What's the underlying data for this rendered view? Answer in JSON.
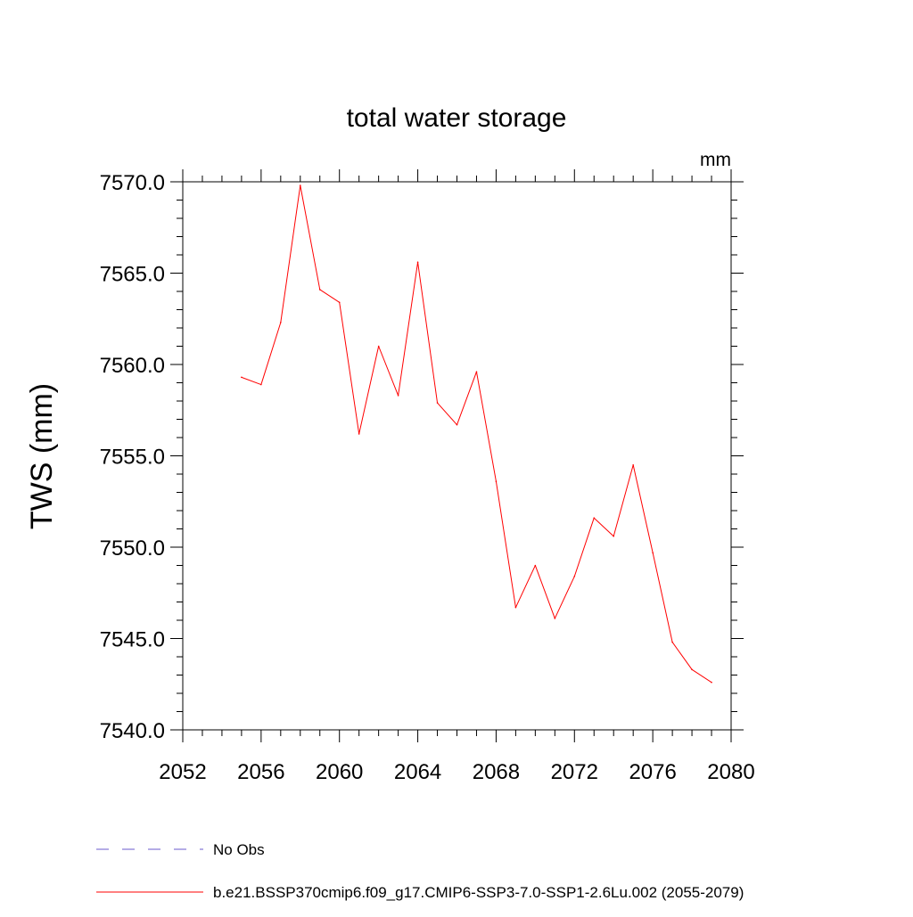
{
  "chart_data": {
    "type": "line",
    "title": "total water storage",
    "units_label": "mm",
    "ylabel": "TWS  (mm)",
    "xlabel": "",
    "xlim": [
      2052,
      2080
    ],
    "ylim": [
      7540,
      7570
    ],
    "x_ticks": [
      2052,
      2056,
      2060,
      2064,
      2068,
      2072,
      2076,
      2080
    ],
    "x_tick_labels": [
      "2052",
      "2056",
      "2060",
      "2064",
      "2068",
      "2072",
      "2076",
      "2080"
    ],
    "y_ticks": [
      7540,
      7545,
      7550,
      7555,
      7560,
      7565,
      7570
    ],
    "y_tick_labels": [
      "7540.0",
      "7545.0",
      "7550.0",
      "7555.0",
      "7560.0",
      "7565.0",
      "7570.0"
    ],
    "grid": false,
    "legend_position": "bottom",
    "series": [
      {
        "name": "b.e21.BSSP370cmip6.f09_g17.CMIP6-SSP3-7.0-SSP1-2.6Lu.002 (2055-2079)",
        "color": "#ff0000",
        "style": "solid",
        "x": [
          2055,
          2056,
          2057,
          2058,
          2059,
          2060,
          2061,
          2062,
          2063,
          2064,
          2065,
          2066,
          2067,
          2068,
          2069,
          2070,
          2071,
          2072,
          2073,
          2074,
          2075,
          2076,
          2077,
          2078,
          2079
        ],
        "y": [
          7559.3,
          7558.9,
          7562.3,
          7569.8,
          7564.1,
          7563.4,
          7556.2,
          7561.0,
          7558.3,
          7565.6,
          7557.9,
          7556.7,
          7559.6,
          7553.6,
          7546.7,
          7549.0,
          7546.1,
          7548.4,
          7551.6,
          7550.6,
          7554.5,
          7549.7,
          7544.8,
          7543.3,
          7542.6
        ]
      }
    ],
    "legend": [
      {
        "label": "No Obs",
        "color": "#6a5acd",
        "style": "dashed"
      },
      {
        "label": "b.e21.BSSP370cmip6.f09_g17.CMIP6-SSP3-7.0-SSP1-2.6Lu.002 (2055-2079)",
        "color": "#ff0000",
        "style": "solid"
      }
    ]
  }
}
